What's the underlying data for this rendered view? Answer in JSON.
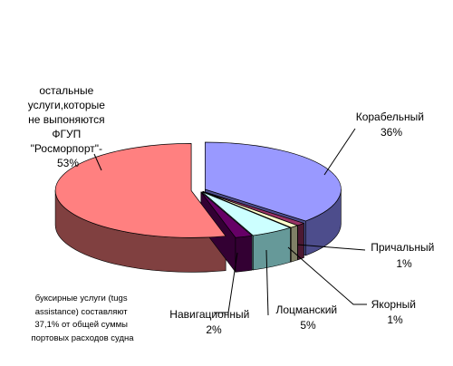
{
  "chart_data": {
    "type": "pie",
    "style": "3d-exploded",
    "legend": "none",
    "slices": [
      {
        "label_lines": [
          "Корабельный",
          "36%"
        ],
        "value": 36,
        "color": "#9999ff",
        "side": "#4d4d8c"
      },
      {
        "label_lines": [
          "Причальный",
          "1%"
        ],
        "value": 1,
        "color": "#993366",
        "side": "#4d1a33"
      },
      {
        "label_lines": [
          "Якорный",
          "1%"
        ],
        "value": 1,
        "color": "#ffffcc",
        "side": "#808066"
      },
      {
        "label_lines": [
          "Лоцманский",
          "5%"
        ],
        "value": 5,
        "color": "#ccffff",
        "side": "#669999"
      },
      {
        "label_lines": [
          "Навигационный",
          "2%"
        ],
        "value": 2,
        "color": "#660066",
        "side": "#330033"
      },
      {
        "label_lines": [
          "остальные",
          "услуги,которые",
          "не выпоняются",
          "ФГУП",
          "\"Росморпорт\"-",
          "53%"
        ],
        "value": 53,
        "color": "#ff8080",
        "side": "#804040"
      }
    ],
    "annotation_lines": [
      "буксирные услуги (tugs",
      "assistance) составляют",
      "37,1% от общей суммы",
      "портовых расходов судна"
    ]
  }
}
